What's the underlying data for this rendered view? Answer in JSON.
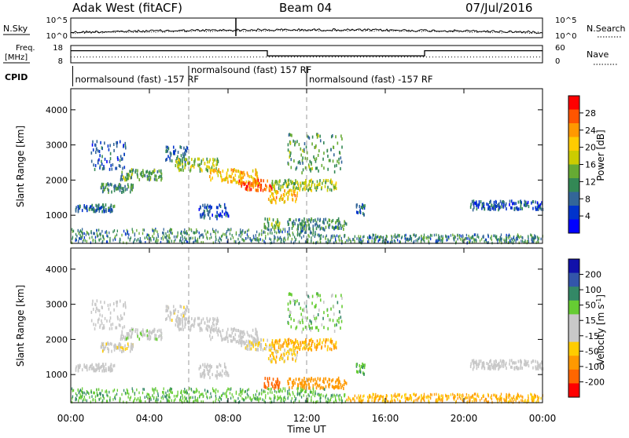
{
  "header": {
    "station": "Adak West (fitACF)",
    "beam": "Beam 04",
    "date": "07/Jul/2016"
  },
  "noise_panel": {
    "left_label": "N.Sky",
    "right_label": "N.Search",
    "left_ticks": [
      "10^5",
      "10^0"
    ],
    "right_ticks": [
      "10^5",
      "10^0"
    ]
  },
  "freq_panel": {
    "left_label_1": "Freq.",
    "left_label_2": "[MHz]",
    "right_label": "Nave",
    "left_ticks": [
      "18",
      "8"
    ],
    "right_ticks": [
      "60",
      "0"
    ],
    "freq_mhz": [
      {
        "t0": 0,
        "t1": 10,
        "value": 15
      },
      {
        "t0": 10,
        "t1": 18,
        "value": 12
      },
      {
        "t0": 18,
        "t1": 24,
        "value": 15
      }
    ],
    "nave": 20
  },
  "cpid_panel": {
    "label": "CPID",
    "segments": [
      {
        "text": "normalsound (fast) -157 RF",
        "t": 0.1,
        "row": 1
      },
      {
        "text": "normalsound (fast) 157 RF",
        "t": 6.0,
        "row": 0
      },
      {
        "text": "normalsound (fast) -157 RF",
        "t": 12.0,
        "row": 1
      }
    ]
  },
  "power_panel": {
    "ylabel": "Slant Range [km]",
    "colorbar_label": "Power [dB]",
    "colorbar_ticks": [
      "28",
      "24",
      "20",
      "16",
      "12",
      "8",
      "4"
    ],
    "colorbar_colors": [
      "#ff0000",
      "#ff5500",
      "#ff9900",
      "#ffcc00",
      "#cccc00",
      "#66aa33",
      "#338855",
      "#336699",
      "#0033cc",
      "#0000ff"
    ]
  },
  "velocity_panel": {
    "ylabel": "Slant Range [km]",
    "colorbar_label": "Velocity [m s^-1]",
    "colorbar_ticks": [
      "200",
      "100",
      "50",
      "15",
      "-15",
      "-50",
      "-100",
      "-200"
    ],
    "colorbar_colors": [
      "#1111aa",
      "#3355aa",
      "#338866",
      "#66cc33",
      "#c8c8c8",
      "#c8c8c8",
      "#ffcc00",
      "#ff9900",
      "#ff6600",
      "#ff0000"
    ]
  },
  "x_axis": {
    "label": "Time UT",
    "ticks": [
      "00:00",
      "04:00",
      "08:00",
      "12:00",
      "16:00",
      "20:00",
      "00:00"
    ]
  },
  "chart_data": {
    "type": "heatmap",
    "title": "Adak West (fitACF)",
    "xlabel": "Time UT",
    "ylabel": "Slant Range [km]",
    "xlim": [
      0,
      24
    ],
    "ylim": [
      200,
      4600
    ],
    "y_ticks": [
      1000,
      2000,
      3000,
      4000
    ],
    "cpid_changes_hours": [
      6,
      12
    ],
    "echo_regions": [
      {
        "t0": 0.2,
        "t1": 2.2,
        "r0": 1100,
        "r1": 1300,
        "power": 8,
        "vel": 0
      },
      {
        "t0": 1.5,
        "t1": 3.2,
        "r0": 1650,
        "r1": 1900,
        "power": 10,
        "vel": -5
      },
      {
        "t0": 2.5,
        "t1": 4.6,
        "r0": 2000,
        "r1": 2300,
        "power": 12,
        "vel": 5
      },
      {
        "t0": 1.0,
        "t1": 2.8,
        "r0": 2300,
        "r1": 3100,
        "power": 6,
        "vel": 0
      },
      {
        "t0": 4.8,
        "t1": 6.0,
        "r0": 2500,
        "r1": 3000,
        "power": 8,
        "vel": -5
      },
      {
        "t0": 5.3,
        "t1": 7.5,
        "r0": 2250,
        "r1": 2600,
        "power": 16,
        "vel": 0
      },
      {
        "t0": 7.0,
        "t1": 9.5,
        "r0": 1900,
        "r1": 2300,
        "power": 22,
        "vel": 0
      },
      {
        "t0": 8.5,
        "t1": 10.2,
        "r0": 1700,
        "r1": 2000,
        "power": 28,
        "vel": -10
      },
      {
        "t0": 6.5,
        "t1": 8.0,
        "r0": 900,
        "r1": 1300,
        "power": 6,
        "vel": 0
      },
      {
        "t0": 10.0,
        "t1": 11.5,
        "r0": 1350,
        "r1": 1700,
        "power": 22,
        "vel": -20
      },
      {
        "t0": 10.2,
        "t1": 13.5,
        "r0": 1700,
        "r1": 2000,
        "power": 16,
        "vel": -30
      },
      {
        "t0": 9.8,
        "t1": 10.6,
        "r0": 600,
        "r1": 900,
        "power": 14,
        "vel": -120
      },
      {
        "t0": 11.0,
        "t1": 14.0,
        "r0": 600,
        "r1": 900,
        "power": 10,
        "vel": -50
      },
      {
        "t0": 11.0,
        "t1": 13.8,
        "r0": 2200,
        "r1": 3300,
        "power": 12,
        "vel": 20
      },
      {
        "t0": 14.5,
        "t1": 15.0,
        "r0": 1000,
        "r1": 1300,
        "power": 8,
        "vel": 30
      },
      {
        "t0": 20.3,
        "t1": 24.0,
        "r0": 1150,
        "r1": 1400,
        "power": 6,
        "vel": 0
      }
    ],
    "ground_scatter_band_km": [
      200,
      600
    ]
  }
}
